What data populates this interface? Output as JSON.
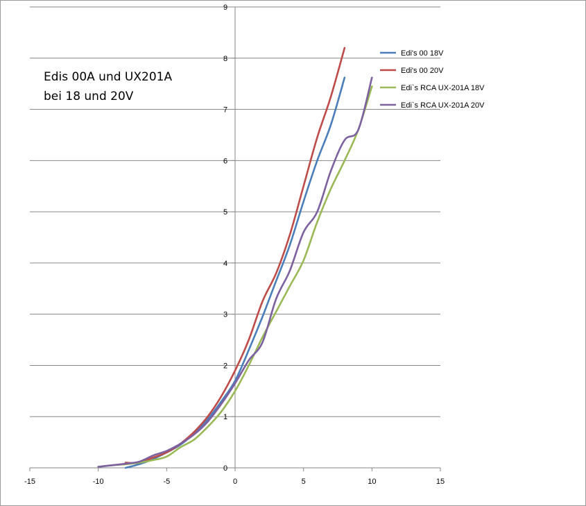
{
  "chart_data": {
    "type": "line",
    "title_lines": [
      "Edis 00A und UX201A",
      "bei 18 und 20V"
    ],
    "xlabel": "",
    "ylabel": "",
    "xlim": [
      -15,
      15
    ],
    "ylim": [
      0,
      9
    ],
    "x_ticks": [
      -15,
      -10,
      -5,
      0,
      5,
      10,
      15
    ],
    "y_ticks": [
      0,
      1,
      2,
      3,
      4,
      5,
      6,
      7,
      8,
      9
    ],
    "grid": "horizontal",
    "legend_position": "top-right",
    "series": [
      {
        "name": "Edi's 00 18V",
        "color": "#4a7ebb",
        "points": [
          [
            -8,
            0.0
          ],
          [
            -7,
            0.07
          ],
          [
            -6,
            0.17
          ],
          [
            -5,
            0.3
          ],
          [
            -4,
            0.45
          ],
          [
            -3,
            0.67
          ],
          [
            -2,
            0.95
          ],
          [
            -1,
            1.3
          ],
          [
            0,
            1.7
          ],
          [
            1,
            2.3
          ],
          [
            2,
            2.95
          ],
          [
            3,
            3.65
          ],
          [
            4,
            4.35
          ],
          [
            5,
            5.2
          ],
          [
            6,
            6.0
          ],
          [
            7,
            6.7
          ],
          [
            8,
            7.62
          ]
        ]
      },
      {
        "name": "Edi's 00 20V",
        "color": "#be4b48",
        "points": [
          [
            -8,
            0.1
          ],
          [
            -7,
            0.1
          ],
          [
            -6,
            0.2
          ],
          [
            -5,
            0.3
          ],
          [
            -4,
            0.47
          ],
          [
            -3,
            0.7
          ],
          [
            -2,
            1.0
          ],
          [
            -1,
            1.4
          ],
          [
            0,
            1.9
          ],
          [
            1,
            2.5
          ],
          [
            2,
            3.25
          ],
          [
            3,
            3.8
          ],
          [
            4,
            4.55
          ],
          [
            5,
            5.5
          ],
          [
            6,
            6.45
          ],
          [
            7,
            7.25
          ],
          [
            8,
            8.2
          ]
        ]
      },
      {
        "name": "Edi`s RCA UX-201A 18V",
        "color": "#98b954",
        "points": [
          [
            -10,
            0.02
          ],
          [
            -9,
            0.05
          ],
          [
            -8,
            0.07
          ],
          [
            -7,
            0.1
          ],
          [
            -6,
            0.15
          ],
          [
            -5,
            0.22
          ],
          [
            -4,
            0.4
          ],
          [
            -3,
            0.55
          ],
          [
            -2,
            0.8
          ],
          [
            -1,
            1.1
          ],
          [
            0,
            1.5
          ],
          [
            1,
            2.0
          ],
          [
            2,
            2.55
          ],
          [
            3,
            3.05
          ],
          [
            4,
            3.55
          ],
          [
            5,
            4.05
          ],
          [
            6,
            4.8
          ],
          [
            7,
            5.45
          ],
          [
            8,
            6.0
          ],
          [
            9,
            6.6
          ],
          [
            10,
            7.45
          ]
        ]
      },
      {
        "name": "Edi`s RCA UX-201A 20V",
        "color": "#7d60a0",
        "points": [
          [
            -10,
            0.02
          ],
          [
            -9,
            0.05
          ],
          [
            -8,
            0.08
          ],
          [
            -7,
            0.12
          ],
          [
            -6,
            0.24
          ],
          [
            -5,
            0.33
          ],
          [
            -4,
            0.47
          ],
          [
            -3,
            0.65
          ],
          [
            -2,
            0.9
          ],
          [
            -1,
            1.25
          ],
          [
            0,
            1.65
          ],
          [
            1,
            2.1
          ],
          [
            2,
            2.45
          ],
          [
            3,
            3.3
          ],
          [
            4,
            3.85
          ],
          [
            5,
            4.6
          ],
          [
            6,
            5.0
          ],
          [
            7,
            5.8
          ],
          [
            8,
            6.4
          ],
          [
            9,
            6.6
          ],
          [
            10,
            7.62
          ]
        ]
      }
    ]
  }
}
